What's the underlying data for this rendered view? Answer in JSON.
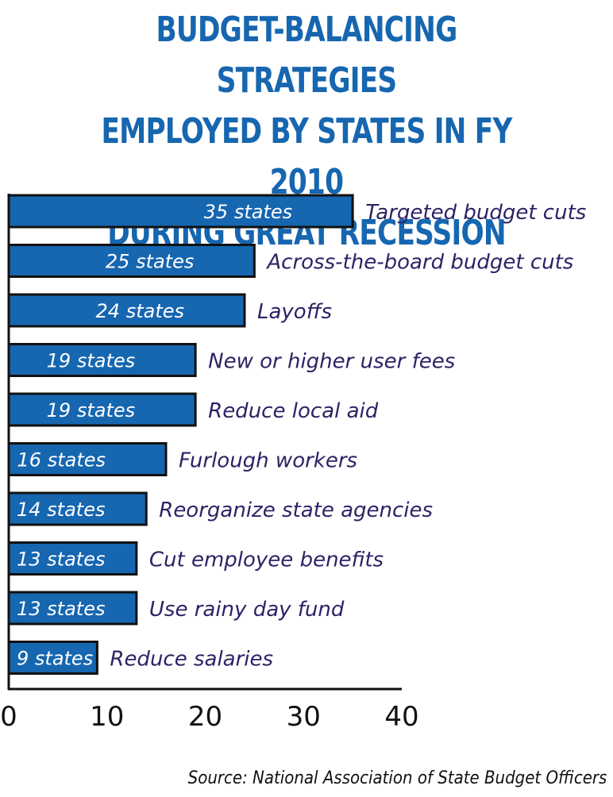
{
  "chart_data": {
    "type": "bar",
    "orientation": "horizontal",
    "title": "BUDGET-BALANCING STRATEGIES EMPLOYED BY STATES IN FY 2010 DURING GREAT RECESSION",
    "title_lines": [
      "BUDGET-BALANCING STRATEGIES",
      "EMPLOYED BY STATES IN FY 2010",
      "DURING GREAT RECESSION"
    ],
    "categories": [
      "Targeted budget cuts",
      "Across-the-board budget cuts",
      "Layoffs",
      "New or higher user fees",
      "Reduce local aid",
      "Furlough workers",
      "Reorganize state agencies",
      "Cut employee benefits",
      "Use rainy day fund",
      "Reduce salaries"
    ],
    "values": [
      35,
      25,
      24,
      19,
      19,
      16,
      14,
      13,
      13,
      9
    ],
    "data_labels": [
      "35 states",
      "25 states",
      "24 states",
      "19 states",
      "19 states",
      "16 states",
      "14 states",
      "13 states",
      "13 states",
      "9 states"
    ],
    "xlim": [
      0,
      40
    ],
    "xticks": [
      0,
      10,
      20,
      30,
      40
    ],
    "xtick_labels": [
      "0",
      "10",
      "20",
      "30",
      "40"
    ],
    "grid": false,
    "legend": "none",
    "colors": {
      "title": "#1666b0",
      "bar_fill": "#1666b0",
      "bar_stroke": "#111111",
      "bar_label": "#ffffff",
      "category_label": "#2b2366",
      "axis": "#111111"
    }
  },
  "source": "Source: National Association of State Budget Officers"
}
